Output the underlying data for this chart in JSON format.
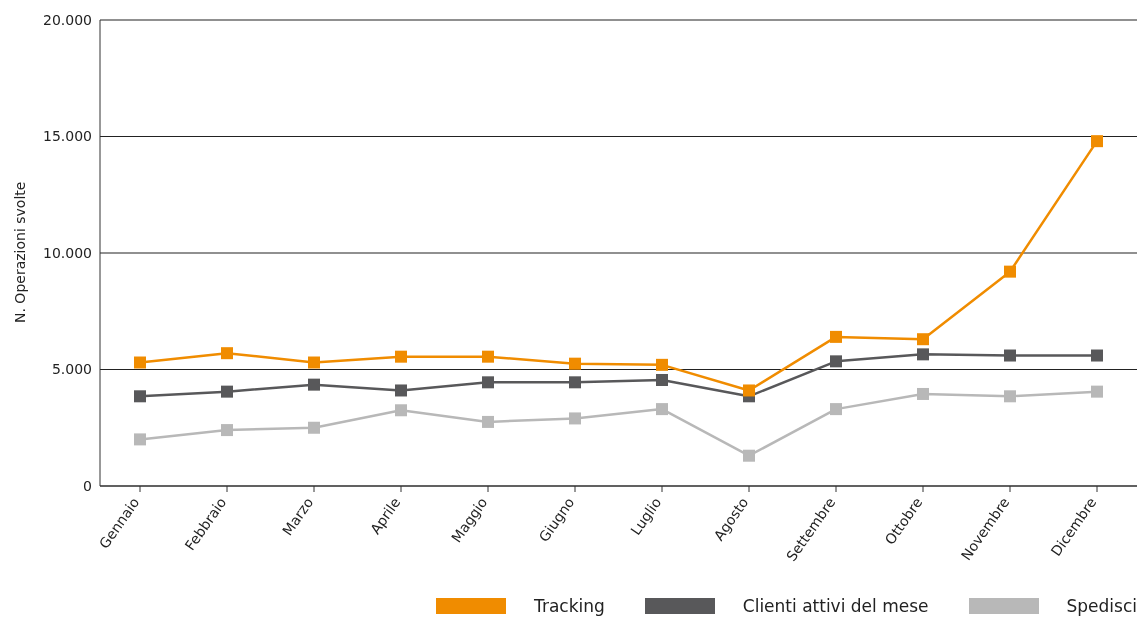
{
  "chart_data": {
    "type": "line",
    "ylabel": "N. Operazioni svolte",
    "categories": [
      "Gennaio",
      "Febbraio",
      "Marzo",
      "Aprile",
      "Maggio",
      "Giugno",
      "Luglio",
      "Agosto",
      "Settembre",
      "Ottobre",
      "Novembre",
      "Dicembre"
    ],
    "series": [
      {
        "name": "Tracking",
        "color": "#f08c00",
        "values": [
          5300,
          5700,
          5300,
          5550,
          5550,
          5250,
          5200,
          4100,
          6400,
          6300,
          9200,
          14800
        ]
      },
      {
        "name": "Clienti attivi del mese",
        "color": "#58585a",
        "values": [
          3850,
          4050,
          4350,
          4100,
          4450,
          4450,
          4550,
          3850,
          5350,
          5650,
          5600,
          5600
        ]
      },
      {
        "name": "Spedisci",
        "color": "#b8b8b8",
        "values": [
          2000,
          2400,
          2500,
          3250,
          2750,
          2900,
          3300,
          1300,
          3300,
          3950,
          3850,
          4050
        ]
      }
    ],
    "ylim": [
      0,
      20000
    ],
    "yticks": [
      0,
      {
        "value": 5000,
        "label": "5.000"
      },
      {
        "value": 10000,
        "label": "10.000"
      },
      {
        "value": 15000,
        "label": "15.000"
      },
      {
        "value": 20000,
        "label": "20.000"
      }
    ],
    "grid": "y",
    "legend": "bottom",
    "marker": "square",
    "line_style": "solid"
  }
}
